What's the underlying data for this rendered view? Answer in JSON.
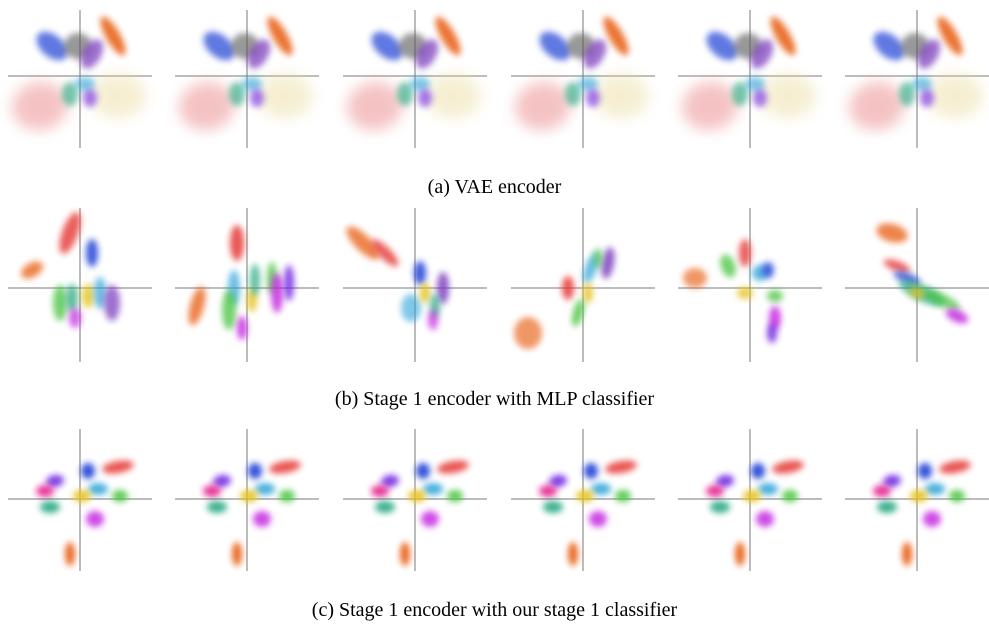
{
  "figure": {
    "captions": {
      "a": "(a) VAE encoder",
      "b": "(b) Stage 1 encoder with MLP classifier",
      "c": "(c) Stage 1 encoder with our stage 1 classifier"
    },
    "colors": {
      "red": "#e53935",
      "orange": "#e65100",
      "blue": "#1e3fd6",
      "purple": "#7e3fbf",
      "violet": "#6a1de0",
      "gray": "#555555",
      "cyan": "#29a3d8",
      "teal": "#1ba37a",
      "green": "#44c23a",
      "yellow": "#e6c21e",
      "magenta": "#c21ee0",
      "pink": "#e6138a",
      "pale_red": "#e87a7a",
      "pale_yellow": "#eadb9c",
      "axis": "#7a7a7a"
    }
  }
}
